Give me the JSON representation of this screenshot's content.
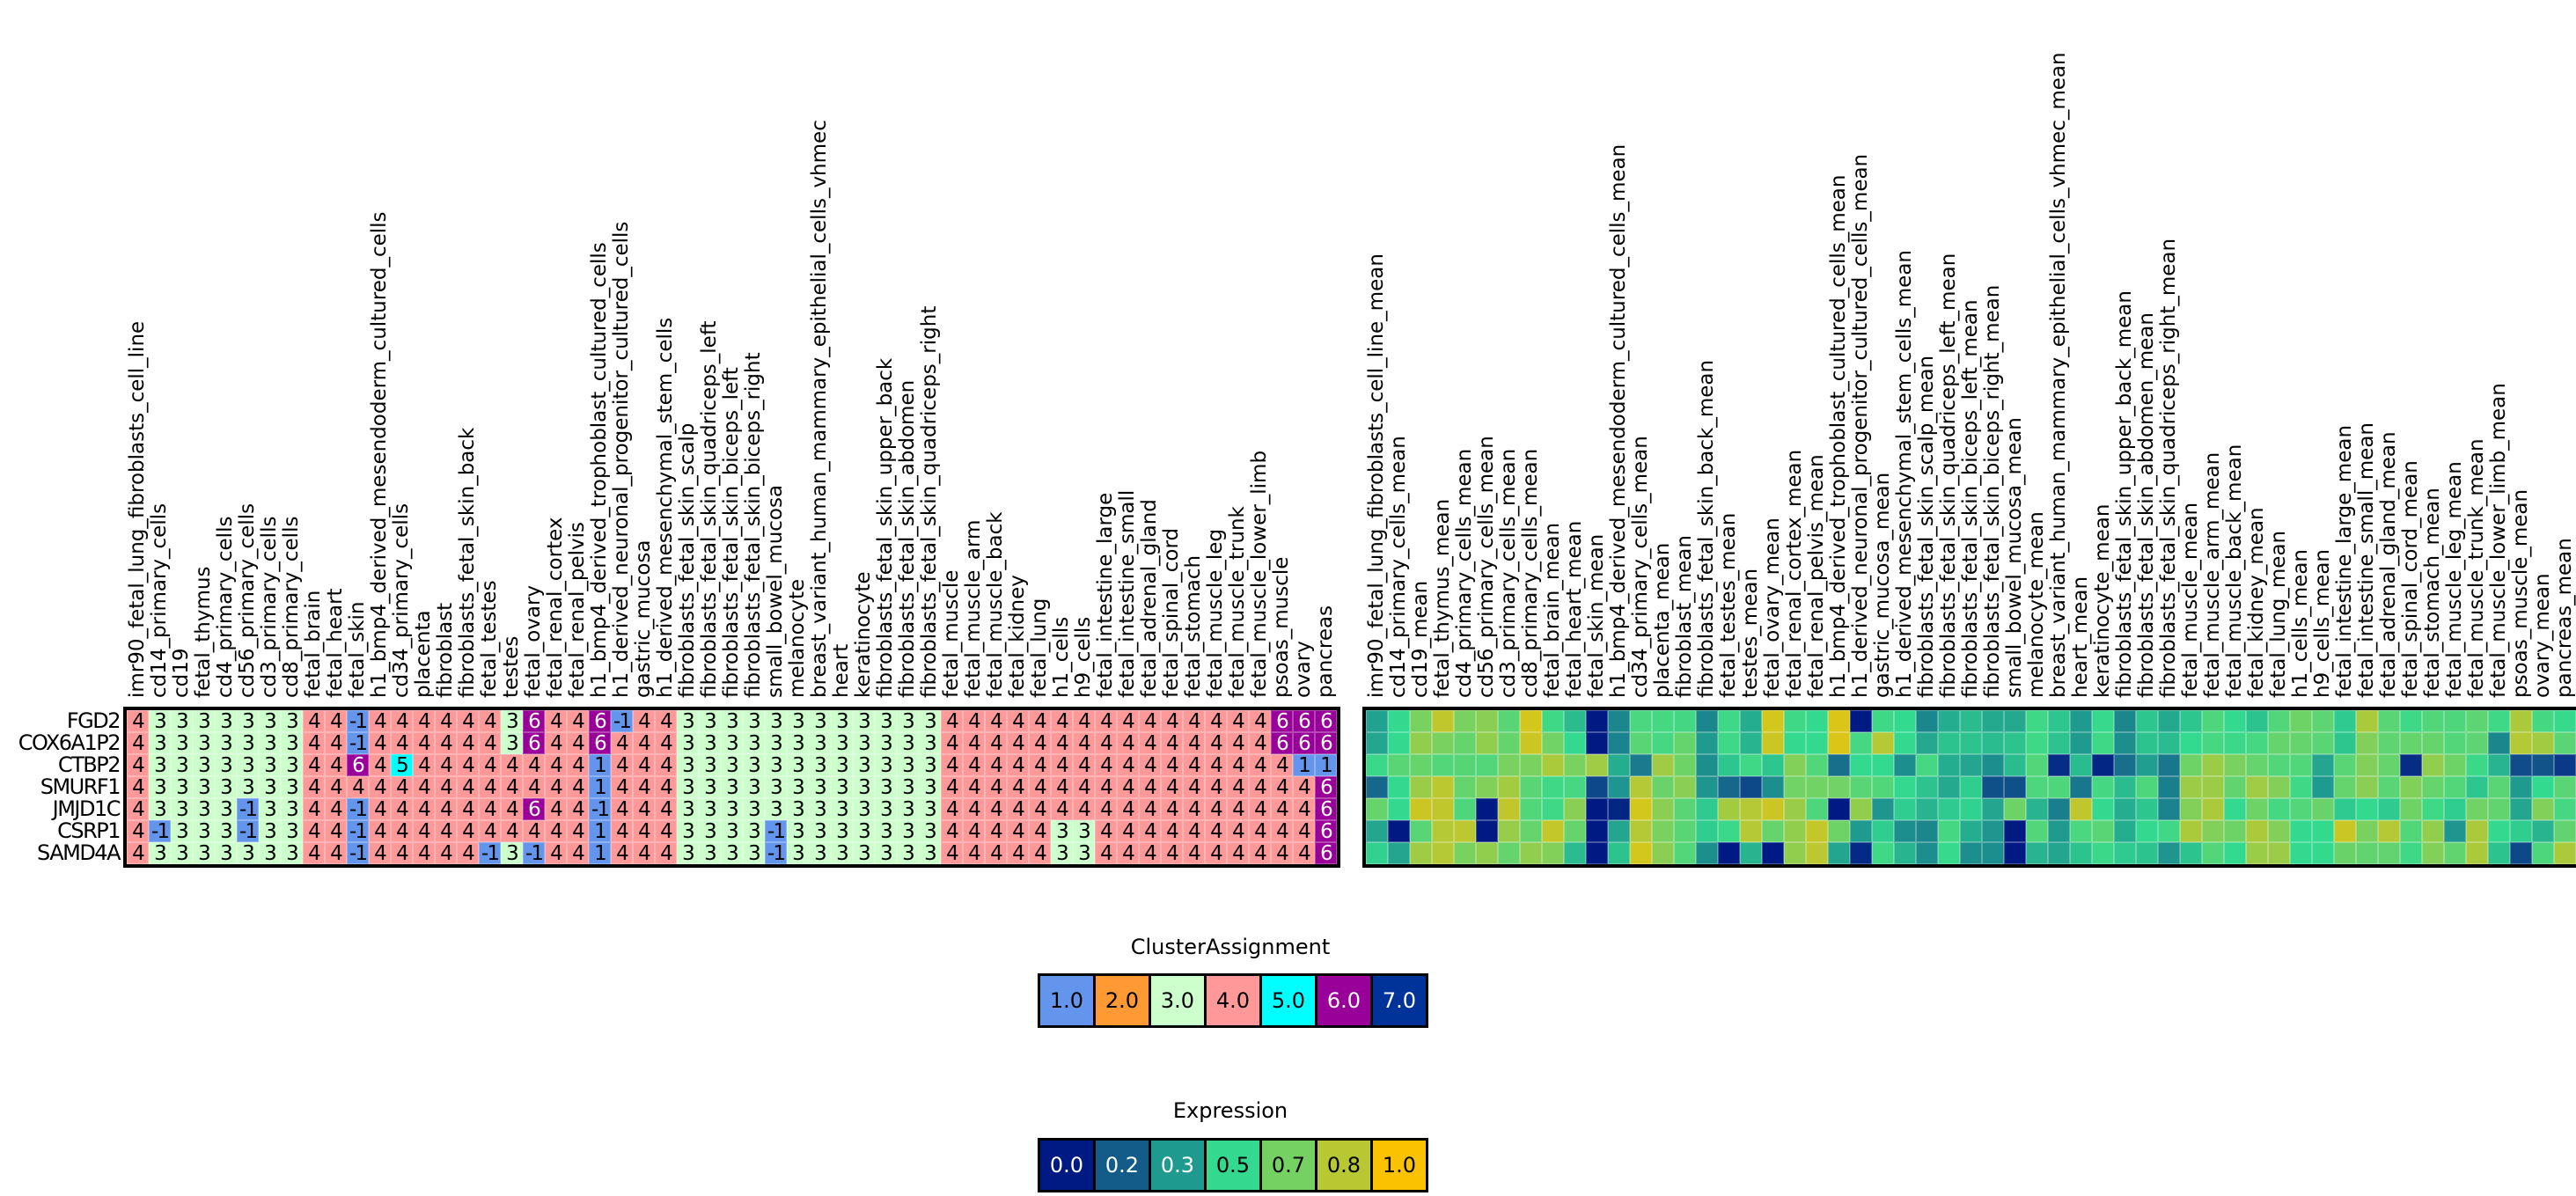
{
  "chart_data": [
    {
      "type": "heatmap",
      "name": "ClusterAssignment",
      "rows": [
        "FGD2",
        "COX6A1P2",
        "CTBP2",
        "SMURF1",
        "JMJD1C",
        "CSRP1",
        "SAMD4A"
      ],
      "columns": [
        "imr90_fetal_lung_fibroblasts_cell_line",
        "cd14_primary_cells",
        "cd19",
        "fetal_thymus",
        "cd4_primary_cells",
        "cd56_primary_cells",
        "cd3_primary_cells",
        "cd8_primary_cells",
        "fetal_brain",
        "fetal_heart",
        "fetal_skin",
        "h1_bmp4_derived_mesendoderm_cultured_cells",
        "cd34_primary_cells",
        "placenta",
        "fibroblast",
        "fibroblasts_fetal_skin_back",
        "fetal_testes",
        "testes",
        "fetal_ovary",
        "fetal_renal_cortex",
        "fetal_renal_pelvis",
        "h1_bmp4_derived_trophoblast_cultured_cells",
        "h1_derived_neuronal_progenitor_cultured_cells",
        "gastric_mucosa",
        "h1_derived_mesenchymal_stem_cells",
        "fibroblasts_fetal_skin_scalp",
        "fibroblasts_fetal_skin_quadriceps_left",
        "fibroblasts_fetal_skin_biceps_left",
        "fibroblasts_fetal_skin_biceps_right",
        "small_bowel_mucosa",
        "melanocyte",
        "breast_variant_human_mammary_epithelial_cells_vhmec",
        "heart",
        "keratinocyte",
        "fibroblasts_fetal_skin_upper_back",
        "fibroblasts_fetal_skin_abdomen",
        "fibroblasts_fetal_skin_quadriceps_right",
        "fetal_muscle",
        "fetal_muscle_arm",
        "fetal_muscle_back",
        "fetal_kidney",
        "fetal_lung",
        "h1_cells",
        "h9_cells",
        "fetal_intestine_large",
        "fetal_intestine_small",
        "fetal_adrenal_gland",
        "fetal_spinal_cord",
        "fetal_stomach",
        "fetal_muscle_leg",
        "fetal_muscle_trunk",
        "fetal_muscle_lower_limb",
        "psoas_muscle",
        "ovary",
        "pancreas"
      ],
      "values": [
        [
          4,
          3,
          3,
          3,
          3,
          3,
          3,
          3,
          4,
          4,
          -1,
          4,
          4,
          4,
          4,
          4,
          4,
          3,
          6,
          4,
          4,
          6,
          -1,
          4,
          4,
          3,
          3,
          3,
          3,
          3,
          3,
          3,
          3,
          3,
          3,
          3,
          3,
          4,
          4,
          4,
          4,
          4,
          4,
          4,
          4,
          4,
          4,
          4,
          4,
          4,
          4,
          4,
          6,
          6,
          6
        ],
        [
          4,
          3,
          3,
          3,
          3,
          3,
          3,
          3,
          4,
          4,
          -1,
          4,
          4,
          4,
          4,
          4,
          4,
          3,
          6,
          4,
          4,
          6,
          4,
          4,
          4,
          3,
          3,
          3,
          3,
          3,
          3,
          3,
          3,
          3,
          3,
          3,
          3,
          4,
          4,
          4,
          4,
          4,
          4,
          4,
          4,
          4,
          4,
          4,
          4,
          4,
          4,
          4,
          6,
          6,
          6
        ],
        [
          4,
          3,
          3,
          3,
          3,
          3,
          3,
          3,
          4,
          4,
          6,
          4,
          5,
          4,
          4,
          4,
          4,
          4,
          4,
          4,
          4,
          1,
          4,
          4,
          4,
          3,
          3,
          3,
          3,
          3,
          3,
          3,
          3,
          3,
          3,
          3,
          3,
          4,
          4,
          4,
          4,
          4,
          4,
          4,
          4,
          4,
          4,
          4,
          4,
          4,
          4,
          4,
          4,
          1,
          1
        ],
        [
          4,
          3,
          3,
          3,
          3,
          3,
          3,
          3,
          4,
          4,
          4,
          4,
          4,
          4,
          4,
          4,
          4,
          4,
          4,
          4,
          4,
          1,
          4,
          4,
          4,
          3,
          3,
          3,
          3,
          3,
          3,
          3,
          3,
          3,
          3,
          3,
          3,
          4,
          4,
          4,
          4,
          4,
          4,
          4,
          4,
          4,
          4,
          4,
          4,
          4,
          4,
          4,
          4,
          4,
          6
        ],
        [
          4,
          3,
          3,
          3,
          3,
          -1,
          3,
          3,
          4,
          4,
          -1,
          4,
          4,
          4,
          4,
          4,
          4,
          4,
          6,
          4,
          4,
          -1,
          4,
          4,
          4,
          3,
          3,
          3,
          3,
          3,
          3,
          3,
          3,
          3,
          3,
          3,
          3,
          4,
          4,
          4,
          4,
          4,
          4,
          4,
          4,
          4,
          4,
          4,
          4,
          4,
          4,
          4,
          4,
          4,
          6
        ],
        [
          4,
          -1,
          3,
          3,
          3,
          -1,
          3,
          3,
          4,
          4,
          -1,
          4,
          4,
          4,
          4,
          4,
          4,
          4,
          4,
          4,
          4,
          1,
          4,
          4,
          4,
          3,
          3,
          3,
          3,
          -1,
          3,
          3,
          3,
          3,
          3,
          3,
          3,
          4,
          4,
          4,
          4,
          4,
          3,
          3,
          4,
          4,
          4,
          4,
          4,
          4,
          4,
          4,
          4,
          4,
          6
        ],
        [
          4,
          3,
          3,
          3,
          3,
          3,
          3,
          3,
          4,
          4,
          -1,
          4,
          4,
          4,
          4,
          4,
          -1,
          3,
          -1,
          4,
          4,
          1,
          4,
          4,
          4,
          3,
          3,
          3,
          3,
          -1,
          3,
          3,
          3,
          3,
          3,
          3,
          3,
          4,
          4,
          4,
          4,
          4,
          3,
          3,
          4,
          4,
          4,
          4,
          4,
          4,
          4,
          4,
          4,
          4,
          6
        ]
      ]
    },
    {
      "type": "heatmap",
      "name": "Expression",
      "rows": [
        "FGD2",
        "COX6A1P2",
        "CTBP2",
        "SMURF1",
        "JMJD1C",
        "CSRP1",
        "SAMD4A"
      ],
      "columns": [
        "imr90_fetal_lung_fibroblasts_cell_line_mean",
        "cd14_primary_cells_mean",
        "cd19_mean",
        "fetal_thymus_mean",
        "cd4_primary_cells_mean",
        "cd56_primary_cells_mean",
        "cd3_primary_cells_mean",
        "cd8_primary_cells_mean",
        "fetal_brain_mean",
        "fetal_heart_mean",
        "fetal_skin_mean",
        "h1_bmp4_derived_mesendoderm_cultured_cells_mean",
        "cd34_primary_cells_mean",
        "placenta_mean",
        "fibroblast_mean",
        "fibroblasts_fetal_skin_back_mean",
        "fetal_testes_mean",
        "testes_mean",
        "fetal_ovary_mean",
        "fetal_renal_cortex_mean",
        "fetal_renal_pelvis_mean",
        "h1_bmp4_derived_trophoblast_cultured_cells_mean",
        "h1_derived_neuronal_progenitor_cultured_cells_mean",
        "gastric_mucosa_mean",
        "h1_derived_mesenchymal_stem_cells_mean",
        "fibroblasts_fetal_skin_scalp_mean",
        "fibroblasts_fetal_skin_quadriceps_left_mean",
        "fibroblasts_fetal_skin_biceps_left_mean",
        "fibroblasts_fetal_skin_biceps_right_mean",
        "small_bowel_mucosa_mean",
        "melanocyte_mean",
        "breast_variant_human_mammary_epithelial_cells_vhmec_mean",
        "heart_mean",
        "keratinocyte_mean",
        "fibroblasts_fetal_skin_upper_back_mean",
        "fibroblasts_fetal_skin_abdomen_mean",
        "fibroblasts_fetal_skin_quadriceps_right_mean",
        "fetal_muscle_mean",
        "fetal_muscle_arm_mean",
        "fetal_muscle_back_mean",
        "fetal_kidney_mean",
        "fetal_lung_mean",
        "h1_cells_mean",
        "h9_cells_mean",
        "fetal_intestine_large_mean",
        "fetal_intestine_small_mean",
        "fetal_adrenal_gland_mean",
        "fetal_spinal_cord_mean",
        "fetal_stomach_mean",
        "fetal_muscle_leg_mean",
        "fetal_muscle_trunk_mean",
        "fetal_muscle_lower_limb_mean",
        "psoas_muscle_mean",
        "ovary_mean",
        "pancreas_mean"
      ],
      "values": [
        [
          0.35,
          0.5,
          0.68,
          0.85,
          0.68,
          0.72,
          0.6,
          0.9,
          0.53,
          0.42,
          0,
          0.28,
          0.56,
          0.55,
          0.54,
          0.28,
          0.53,
          0.38,
          0.9,
          0.53,
          0.5,
          0.92,
          0,
          0.53,
          0.5,
          0.28,
          0.38,
          0.42,
          0.37,
          0.37,
          0.53,
          0.45,
          0.33,
          0.51,
          0.28,
          0.45,
          0.37,
          0.45,
          0.57,
          0.5,
          0.44,
          0.58,
          0.65,
          0.61,
          0.46,
          0.8,
          0.6,
          0.53,
          0.58,
          0.57,
          0.61,
          0.53,
          0.8,
          0.55,
          0.51
        ],
        [
          0.36,
          0.5,
          0.74,
          0.68,
          0.63,
          0.74,
          0.63,
          0.88,
          0.66,
          0.5,
          0,
          0.27,
          0.6,
          0.55,
          0.63,
          0.33,
          0.53,
          0.4,
          0.88,
          0.5,
          0.5,
          0.92,
          0.55,
          0.82,
          0.5,
          0.37,
          0.44,
          0.44,
          0.42,
          0.44,
          0.53,
          0.44,
          0.33,
          0.53,
          0.3,
          0.44,
          0.42,
          0.5,
          0.55,
          0.52,
          0.55,
          0.63,
          0.63,
          0.6,
          0.45,
          0.7,
          0.61,
          0.63,
          0.63,
          0.58,
          0.61,
          0.28,
          0.82,
          0.78,
          0.6
        ],
        [
          0.52,
          0.6,
          0.63,
          0.58,
          0.59,
          0.58,
          0.68,
          0.68,
          0.8,
          0.68,
          0.77,
          0.38,
          0.25,
          0.77,
          0.65,
          0.3,
          0.45,
          0.53,
          0.45,
          0.7,
          0.58,
          0.22,
          0.5,
          0.5,
          0.3,
          0.55,
          0.38,
          0.36,
          0.3,
          0.42,
          0.58,
          0.05,
          0.42,
          0.03,
          0.22,
          0.34,
          0.24,
          0.65,
          0.76,
          0.68,
          0.63,
          0.58,
          0.58,
          0.36,
          0.6,
          0.7,
          0.63,
          0.05,
          0.74,
          0.65,
          0.52,
          0.4,
          0.13,
          0.15,
          0.08
        ],
        [
          0.2,
          0.5,
          0.76,
          0.84,
          0.63,
          0.7,
          0.78,
          0.6,
          0.53,
          0.55,
          0.12,
          0.32,
          0.82,
          0.64,
          0.72,
          0.32,
          0.2,
          0.12,
          0.3,
          0.66,
          0.66,
          0.66,
          0.6,
          0.58,
          0.5,
          0.44,
          0.37,
          0.47,
          0.14,
          0.14,
          0.57,
          0.57,
          0.24,
          0.55,
          0.42,
          0.57,
          0.26,
          0.76,
          0.76,
          0.62,
          0.77,
          0.7,
          0.53,
          0.33,
          0.63,
          0.72,
          0.6,
          0.7,
          0.63,
          0.58,
          0.45,
          0.6,
          0.33,
          0.5,
          0.6
        ],
        [
          0.63,
          0.5,
          0.88,
          0.85,
          0.57,
          0,
          0.85,
          0.58,
          0.53,
          0.72,
          0,
          0.03,
          0.9,
          0.72,
          0.6,
          0.46,
          0.78,
          0.82,
          0.88,
          0.76,
          0.57,
          0,
          0.74,
          0.32,
          0.47,
          0.4,
          0.46,
          0.48,
          0.36,
          0.65,
          0.4,
          0.26,
          0.85,
          0.5,
          0.38,
          0.45,
          0.27,
          0.7,
          0.8,
          0.5,
          0.65,
          0.55,
          0.58,
          0.64,
          0.46,
          0.5,
          0.46,
          0.65,
          0.53,
          0.47,
          0.66,
          0.62,
          0.36,
          0.7,
          0.55
        ],
        [
          0.36,
          0,
          0.6,
          0.82,
          0.84,
          0,
          0.75,
          0.63,
          0.86,
          0.63,
          0,
          0.36,
          0.82,
          0.68,
          0.6,
          0.47,
          0.52,
          0.82,
          0.63,
          0.74,
          0.86,
          0.65,
          0.33,
          0.47,
          0.3,
          0.28,
          0.55,
          0.38,
          0.32,
          0,
          0.58,
          0.33,
          0.56,
          0.6,
          0.38,
          0.5,
          0.53,
          0.8,
          0.7,
          0.65,
          0.8,
          0.7,
          0.5,
          0.5,
          0.87,
          0.68,
          0.82,
          0.58,
          0.74,
          0.32,
          0.8,
          0.5,
          0.47,
          0.4,
          0.62
        ],
        [
          0.48,
          0.36,
          0.77,
          0.82,
          0.68,
          0.74,
          0.63,
          0.74,
          0.7,
          0.42,
          0,
          0.44,
          0.9,
          0.72,
          0.58,
          0.3,
          0,
          0.4,
          0,
          0.74,
          0.84,
          0.36,
          0.04,
          0.53,
          0.4,
          0.3,
          0.51,
          0.3,
          0.3,
          0,
          0.4,
          0.36,
          0.44,
          0.52,
          0.46,
          0.44,
          0.32,
          0.44,
          0.58,
          0.5,
          0.76,
          0.76,
          0.5,
          0.5,
          0.64,
          0.62,
          0.62,
          0.53,
          0.7,
          0.62,
          0.8,
          0.44,
          0.12,
          0.57,
          0.8
        ]
      ],
      "vrange": [
        0,
        1
      ]
    }
  ],
  "legends": {
    "cluster": {
      "title": "ClusterAssignment",
      "labels": [
        "1.0",
        "2.0",
        "3.0",
        "4.0",
        "5.0",
        "6.0",
        "7.0"
      ],
      "colors": [
        "#6495ed",
        "#ff9933",
        "#ccffcc",
        "#ff9999",
        "#00ffff",
        "#990099",
        "#003399"
      ],
      "text_colors": [
        "#000000",
        "#000000",
        "#000000",
        "#000000",
        "#000000",
        "#ffffff",
        "#ffffff"
      ]
    },
    "expression": {
      "title": "Expression",
      "labels": [
        "0.0",
        "0.2",
        "0.3",
        "0.5",
        "0.7",
        "0.8",
        "1.0"
      ],
      "colors": [
        "#001a84",
        "#135c8a",
        "#1f9a8f",
        "#33d98f",
        "#75d262",
        "#b8c832",
        "#fac200"
      ],
      "text_colors": [
        "#ffffff",
        "#ffffff",
        "#ffffff",
        "#000000",
        "#000000",
        "#000000",
        "#000000"
      ]
    }
  }
}
